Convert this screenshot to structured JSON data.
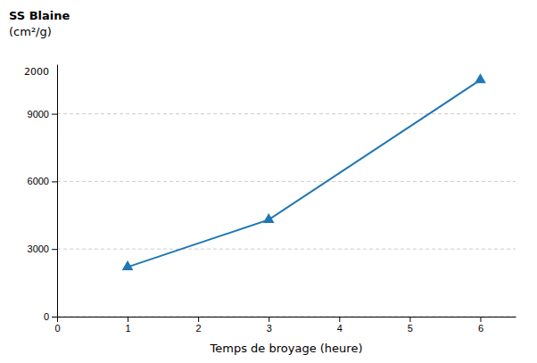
{
  "chart_data": {
    "type": "line",
    "x": [
      1,
      3,
      6
    ],
    "values": [
      2200,
      4300,
      10500
    ],
    "xlabel": "Temps de broyage (heure)",
    "ylabel": [
      "SS Blaine",
      "(cm²/g)"
    ],
    "annotations": [
      {
        "text": "2000"
      }
    ],
    "xlim": [
      0,
      6.5
    ],
    "ylim": [
      0,
      11200
    ],
    "xticks": [
      0,
      1,
      2,
      3,
      4,
      5,
      6
    ],
    "yticks": [
      0,
      3000,
      6000,
      9000
    ],
    "grid": true,
    "marker": "triangle"
  }
}
